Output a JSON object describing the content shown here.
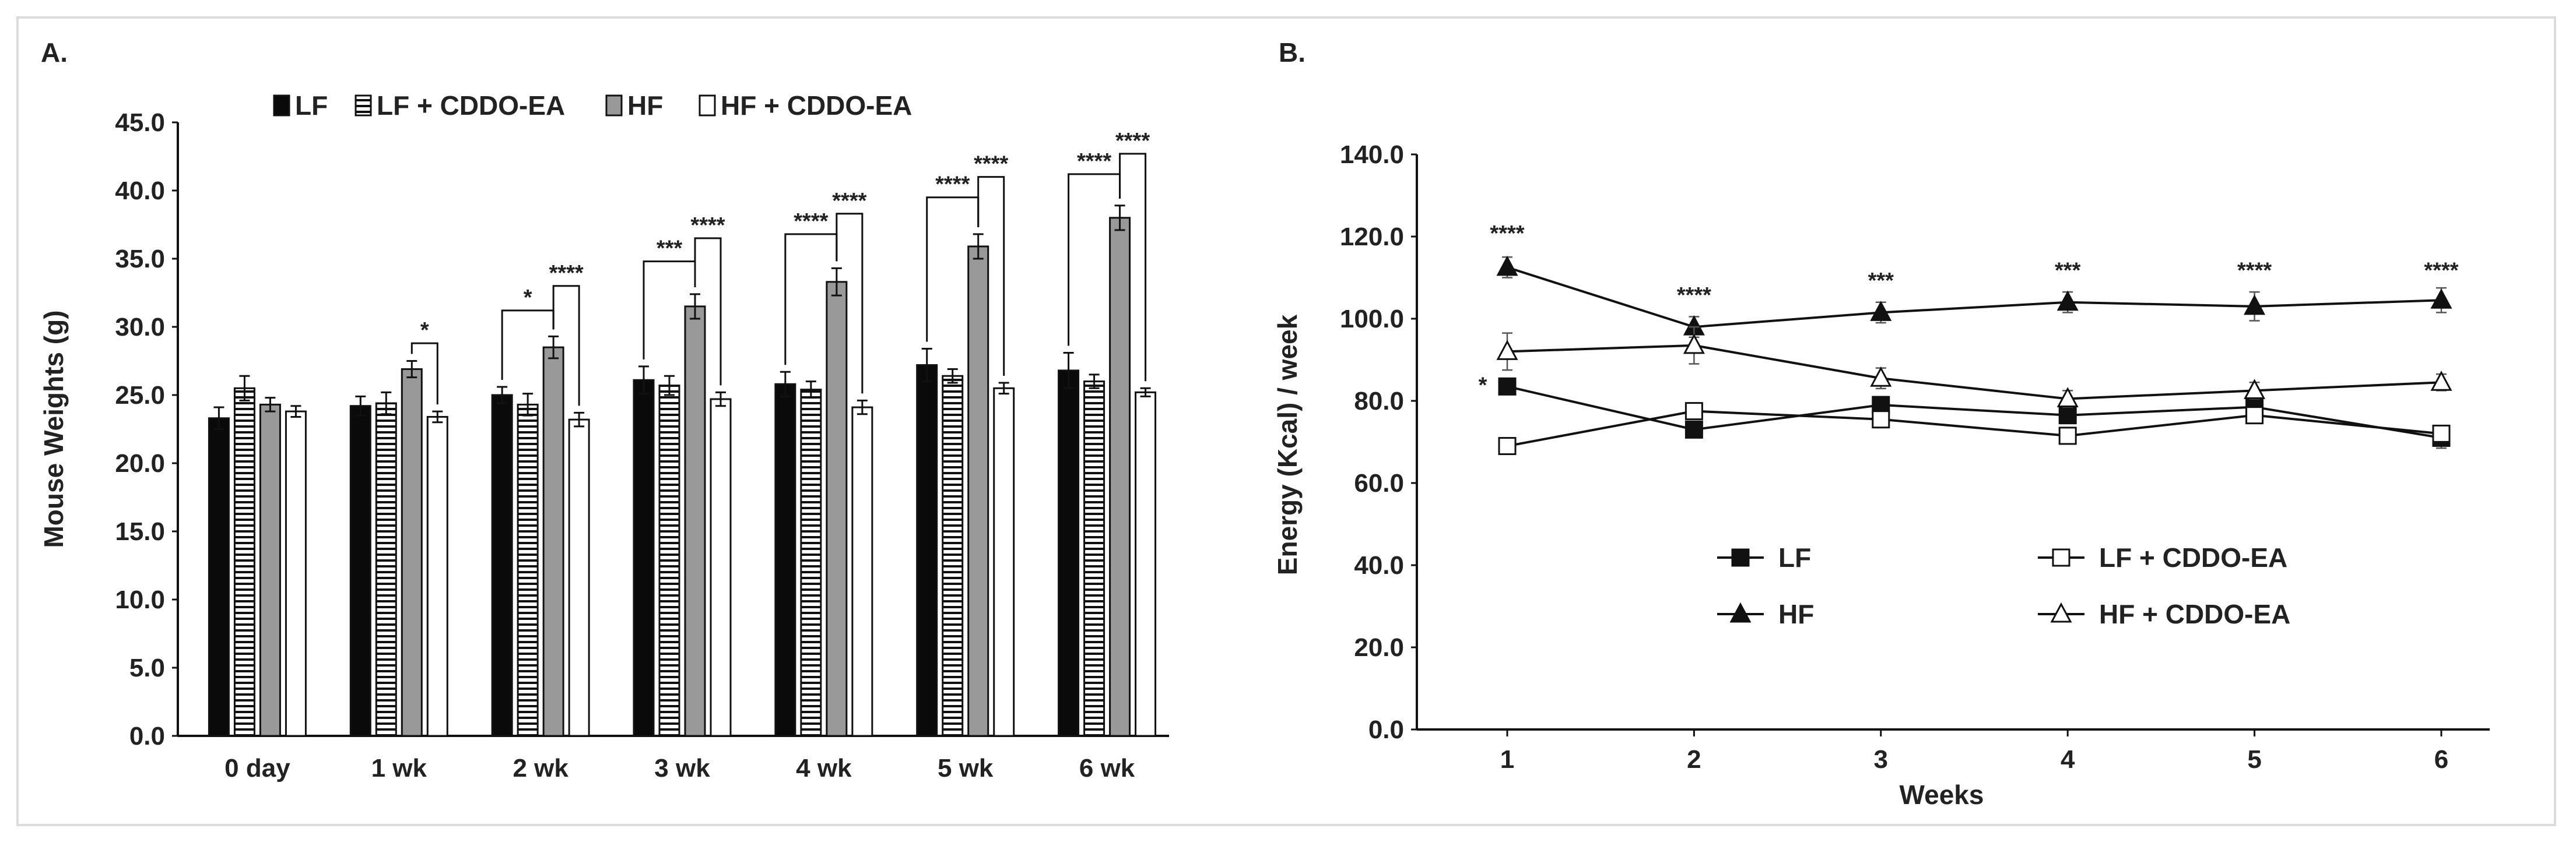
{
  "panels": {
    "a_label": "A.",
    "b_label": "B."
  },
  "chart_data": [
    {
      "type": "bar",
      "panel": "A.",
      "title": "",
      "xlabel": "",
      "ylabel": "Mouse Weights (g)",
      "ylim": [
        0,
        45
      ],
      "yticks": [
        "0.0",
        "5.0",
        "10.0",
        "15.0",
        "20.0",
        "25.0",
        "30.0",
        "35.0",
        "40.0",
        "45.0"
      ],
      "categories": [
        "0 day",
        "1 wk",
        "2 wk",
        "3 wk",
        "4 wk",
        "5 wk",
        "6 wk"
      ],
      "series": [
        {
          "name": "LF",
          "style": "solid-black",
          "values": [
            23.3,
            24.2,
            25.0,
            26.1,
            25.8,
            27.2,
            26.8
          ],
          "errors": [
            0.8,
            0.7,
            0.6,
            1.0,
            0.9,
            1.2,
            1.3
          ]
        },
        {
          "name": "LF + CDDO-EA",
          "style": "horizontal-stripes",
          "values": [
            25.5,
            24.4,
            24.3,
            25.7,
            25.4,
            26.4,
            26.0
          ],
          "errors": [
            0.9,
            0.8,
            0.8,
            0.7,
            0.6,
            0.5,
            0.5
          ]
        },
        {
          "name": "HF",
          "style": "solid-gray",
          "values": [
            24.3,
            26.9,
            28.5,
            31.5,
            33.3,
            35.9,
            38.0
          ],
          "errors": [
            0.5,
            0.6,
            0.8,
            0.9,
            1.0,
            0.9,
            0.9
          ]
        },
        {
          "name": "HF + CDDO-EA",
          "style": "white",
          "values": [
            23.8,
            23.4,
            23.2,
            24.7,
            24.1,
            25.5,
            25.2
          ],
          "errors": [
            0.4,
            0.4,
            0.5,
            0.5,
            0.5,
            0.4,
            0.3
          ]
        }
      ],
      "significance": [
        {
          "category": "1 wk",
          "from": 2,
          "to": 3,
          "label": "*",
          "top": 28.8
        },
        {
          "category": "2 wk",
          "from": 0,
          "to": 2,
          "label": "*",
          "top": 31.2
        },
        {
          "category": "2 wk",
          "from": 2,
          "to": 3,
          "label": "****",
          "top": 33.0
        },
        {
          "category": "3 wk",
          "from": 0,
          "to": 2,
          "label": "***",
          "top": 34.8
        },
        {
          "category": "3 wk",
          "from": 2,
          "to": 3,
          "label": "****",
          "top": 36.5
        },
        {
          "category": "4 wk",
          "from": 0,
          "to": 2,
          "label": "****",
          "top": 36.8
        },
        {
          "category": "4 wk",
          "from": 2,
          "to": 3,
          "label": "****",
          "top": 38.3
        },
        {
          "category": "5 wk",
          "from": 0,
          "to": 2,
          "label": "****",
          "top": 39.5
        },
        {
          "category": "5 wk",
          "from": 2,
          "to": 3,
          "label": "****",
          "top": 41.0
        },
        {
          "category": "6 wk",
          "from": 0,
          "to": 2,
          "label": "****",
          "top": 41.2
        },
        {
          "category": "6 wk",
          "from": 2,
          "to": 3,
          "label": "****",
          "top": 42.7
        }
      ],
      "legend": [
        "LF",
        "LF + CDDO-EA",
        "HF",
        "HF + CDDO-EA"
      ],
      "legend_position": "top"
    },
    {
      "type": "line",
      "panel": "B.",
      "title": "",
      "xlabel": "Weeks",
      "ylabel": "Energy (Kcal) / week",
      "ylim": [
        0,
        140
      ],
      "yticks": [
        "0.0",
        "20.0",
        "40.0",
        "60.0",
        "80.0",
        "100.0",
        "120.0",
        "140.0"
      ],
      "x": [
        1,
        2,
        3,
        4,
        5,
        6
      ],
      "xticks": [
        "1",
        "2",
        "3",
        "4",
        "5",
        "6"
      ],
      "series": [
        {
          "name": "LF",
          "marker": "filled-square",
          "values": [
            83.5,
            73.0,
            79.0,
            76.5,
            78.5,
            71.0
          ],
          "errors": [
            1.5,
            1.5,
            1.5,
            1.5,
            1.5,
            2.5
          ]
        },
        {
          "name": "LF + CDDO-EA",
          "marker": "open-square",
          "values": [
            69.0,
            77.5,
            75.5,
            71.5,
            76.5,
            72.0
          ],
          "errors": [
            2.0,
            2.0,
            2.0,
            1.5,
            1.5,
            2.0
          ]
        },
        {
          "name": "HF",
          "marker": "filled-triangle",
          "values": [
            112.5,
            98.0,
            101.5,
            104.0,
            103.0,
            104.5
          ],
          "errors": [
            2.5,
            2.5,
            2.5,
            2.5,
            3.5,
            3.0
          ]
        },
        {
          "name": "HF + CDDO-EA",
          "marker": "open-triangle",
          "values": [
            92.0,
            93.5,
            85.5,
            80.5,
            82.5,
            84.5
          ],
          "errors": [
            4.5,
            4.5,
            2.5,
            2.0,
            2.0,
            2.0
          ]
        }
      ],
      "annotations": [
        {
          "x": 1,
          "y": 119.0,
          "text": "****"
        },
        {
          "x": 2,
          "y": 104.0,
          "text": "****"
        },
        {
          "x": 3,
          "y": 107.5,
          "text": "***"
        },
        {
          "x": 4,
          "y": 110.0,
          "text": "***"
        },
        {
          "x": 5,
          "y": 110.0,
          "text": "****"
        },
        {
          "x": 6,
          "y": 110.0,
          "text": "****"
        },
        {
          "x": 1,
          "y": 83.5,
          "text": "*",
          "side": "left"
        }
      ],
      "legend": [
        "LF",
        "LF + CDDO-EA",
        "HF",
        "HF + CDDO-EA"
      ],
      "legend_position": "center"
    }
  ]
}
